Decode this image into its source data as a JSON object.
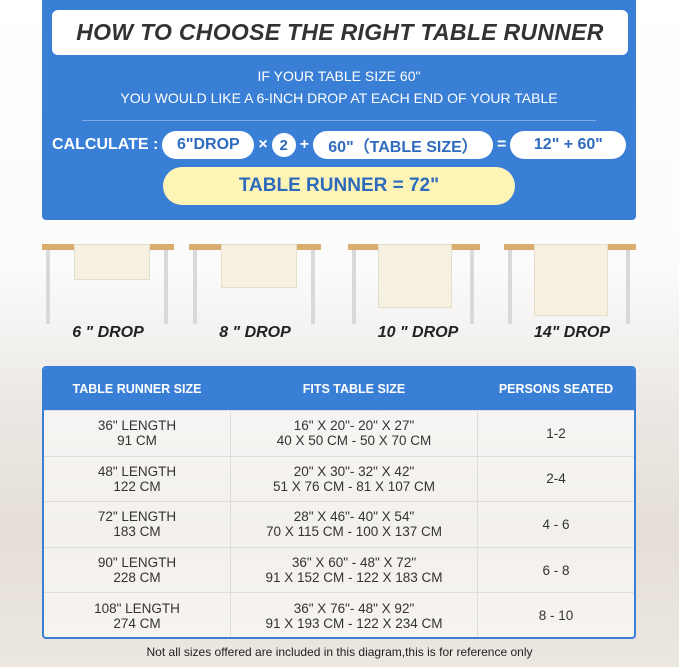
{
  "title": "HOW TO CHOOSE THE RIGHT TABLE RUNNER",
  "intro": [
    "IF YOUR TABLE SIZE 60\"",
    "YOU WOULD LIKE A 6-INCH DROP AT EACH END OF YOUR TABLE"
  ],
  "calc": {
    "label": "CALCULATE :",
    "drop": "6\"DROP",
    "times": "×",
    "two": "2",
    "plus": "+",
    "table": "60\"（TABLE SIZE）",
    "equals": "=",
    "sum": "12\" + 60\"",
    "result": "TABLE RUNNER = 72\""
  },
  "drops": [
    "6 \" DROP",
    "8 \" DROP",
    "10 \" DROP",
    "14\" DROP"
  ],
  "table": {
    "headers": [
      "TABLE RUNNER SIZE",
      "FITS TABLE SIZE",
      "PERSONS SEATED"
    ],
    "rows": [
      {
        "size": "36\" LENGTH",
        "cm": "91 CM",
        "fits_in": "16\" X 20\"- 20\" X 27\"",
        "fits_cm": "40 X 50 CM - 50 X 70 CM",
        "persons": "1-2"
      },
      {
        "size": "48\" LENGTH",
        "cm": "122 CM",
        "fits_in": "20\" X 30\"- 32\" X 42\"",
        "fits_cm": "51 X 76 CM - 81 X 107 CM",
        "persons": "2-4"
      },
      {
        "size": "72\" LENGTH",
        "cm": "183 CM",
        "fits_in": "28\" X 46\"- 40\" X 54\"",
        "fits_cm": "70 X 115 CM - 100 X 137 CM",
        "persons": "4 - 6"
      },
      {
        "size": "90\" LENGTH",
        "cm": "228 CM",
        "fits_in": "36\" X 60\" - 48\" X 72\"",
        "fits_cm": "91 X 152 CM - 122 X 183 CM",
        "persons": "6 - 8"
      },
      {
        "size": "108\" LENGTH",
        "cm": "274 CM",
        "fits_in": "36\" X 76\"- 48\" X 92\"",
        "fits_cm": "91 X 193 CM - 122 X 234 CM",
        "persons": "8 - 10"
      }
    ]
  },
  "note": "Not all sizes offered are included in this diagram,this is for reference only",
  "colors": {
    "blue": "#3a7fd6",
    "yellow": "#fdf4b6",
    "wood": "#d8ad6e"
  }
}
